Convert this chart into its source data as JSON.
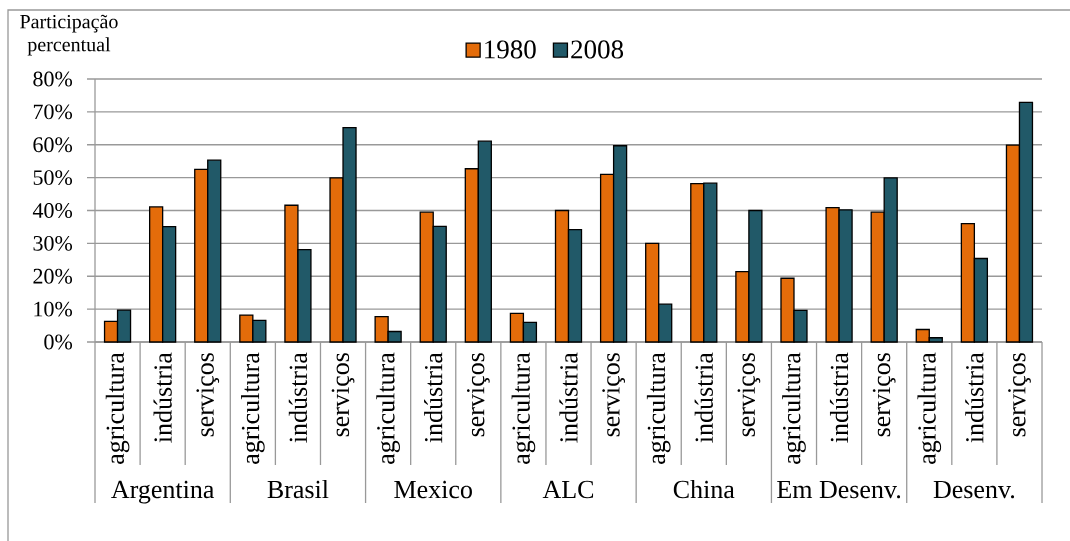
{
  "chart_data": {
    "type": "bar",
    "ylabel": "Participação percentual",
    "categories": [
      "agricultura",
      "indústria",
      "serviços",
      "agricultura",
      "indústria",
      "serviços",
      "agricultura",
      "indústria",
      "serviços",
      "agricultura",
      "indústria",
      "serviços",
      "agricultura",
      "indústria",
      "serviços",
      "agricultura",
      "indústria",
      "serviços",
      "agricultura",
      "indústria",
      "serviços"
    ],
    "annotations": [
      "Argentina",
      "Brasil",
      "Mexico",
      "ALC",
      "China",
      "Em Desenv.",
      "Desenv."
    ],
    "series": [
      {
        "name": "1980",
        "color": "#e46c0a",
        "values": [
          6.3,
          41.1,
          52.5,
          8.2,
          41.6,
          49.9,
          7.7,
          39.5,
          52.7,
          8.7,
          40.0,
          51.0,
          30.0,
          48.2,
          21.4,
          19.4,
          40.9,
          39.5,
          3.8,
          36.0,
          59.9
        ]
      },
      {
        "name": "2008",
        "color": "#215968",
        "values": [
          9.7,
          35.1,
          55.3,
          6.6,
          28.1,
          65.2,
          3.2,
          35.2,
          61.1,
          6.0,
          34.2,
          59.7,
          11.5,
          48.3,
          40.0,
          9.6,
          40.2,
          49.9,
          1.3,
          25.4,
          72.9
        ]
      }
    ],
    "ylim": [
      0,
      80
    ],
    "yticks": [
      {
        "value": 0,
        "label": "0%"
      },
      {
        "value": 10,
        "label": "10%"
      },
      {
        "value": 20,
        "label": "20%"
      },
      {
        "value": 30,
        "label": "30%"
      },
      {
        "value": 40,
        "label": "40%"
      },
      {
        "value": 50,
        "label": "50%"
      },
      {
        "value": 60,
        "label": "60%"
      },
      {
        "value": 70,
        "label": "70%"
      },
      {
        "value": 80,
        "label": "80%"
      }
    ],
    "grid": "y",
    "legend": "top"
  }
}
